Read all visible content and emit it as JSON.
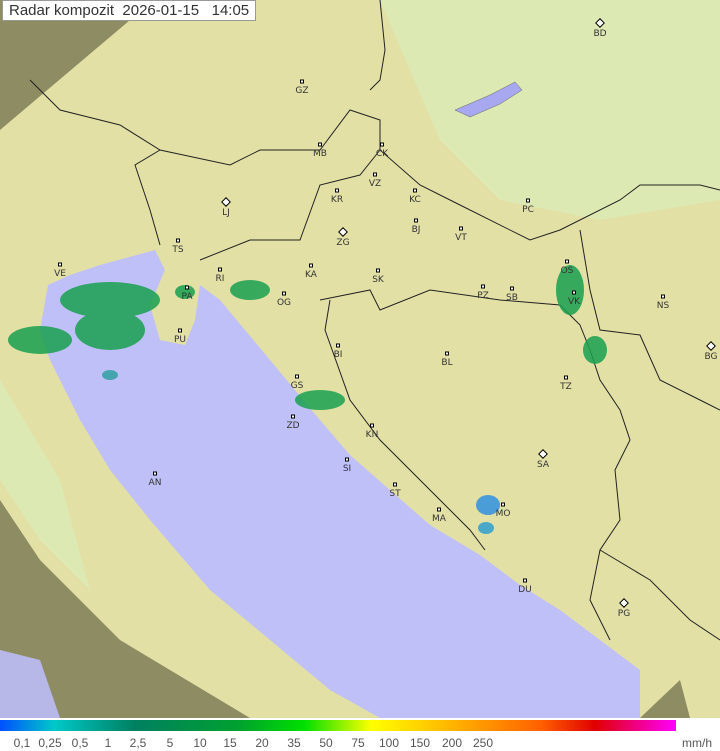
{
  "title": "Radar kompozit  2026-01-15   14:05",
  "legend": {
    "labels": [
      "0,1",
      "0,25",
      "0,5",
      "1",
      "2,5",
      "5",
      "10",
      "15",
      "20",
      "35",
      "50",
      "75",
      "100",
      "150",
      "200",
      "250"
    ],
    "unit": "mm/h"
  },
  "cities": [
    {
      "code": "BD",
      "capital": true
    },
    {
      "code": "GZ"
    },
    {
      "code": "MB"
    },
    {
      "code": "CK"
    },
    {
      "code": "VZ"
    },
    {
      "code": "KR"
    },
    {
      "code": "KC"
    },
    {
      "code": "PC"
    },
    {
      "code": "LJ",
      "capital": true
    },
    {
      "code": "ZG",
      "capital": true
    },
    {
      "code": "BJ"
    },
    {
      "code": "VT"
    },
    {
      "code": "TS"
    },
    {
      "code": "KA"
    },
    {
      "code": "SK"
    },
    {
      "code": "VE"
    },
    {
      "code": "RI"
    },
    {
      "code": "PA"
    },
    {
      "code": "OG"
    },
    {
      "code": "PZ"
    },
    {
      "code": "SB"
    },
    {
      "code": "OS"
    },
    {
      "code": "VK"
    },
    {
      "code": "NS"
    },
    {
      "code": "PU"
    },
    {
      "code": "BI"
    },
    {
      "code": "BL"
    },
    {
      "code": "BG",
      "capital": true
    },
    {
      "code": "TZ"
    },
    {
      "code": "GS"
    },
    {
      "code": "ZD"
    },
    {
      "code": "KN"
    },
    {
      "code": "SA",
      "capital": true
    },
    {
      "code": "SI"
    },
    {
      "code": "AN"
    },
    {
      "code": "ST"
    },
    {
      "code": "MA"
    },
    {
      "code": "MO"
    },
    {
      "code": "DU"
    },
    {
      "code": "PG",
      "capital": true
    }
  ],
  "colors": {
    "land": "#e6e4a8",
    "sea": "#c0c0f8",
    "outside": "#8a8a5a",
    "radar_light": "#d8f0c0"
  }
}
